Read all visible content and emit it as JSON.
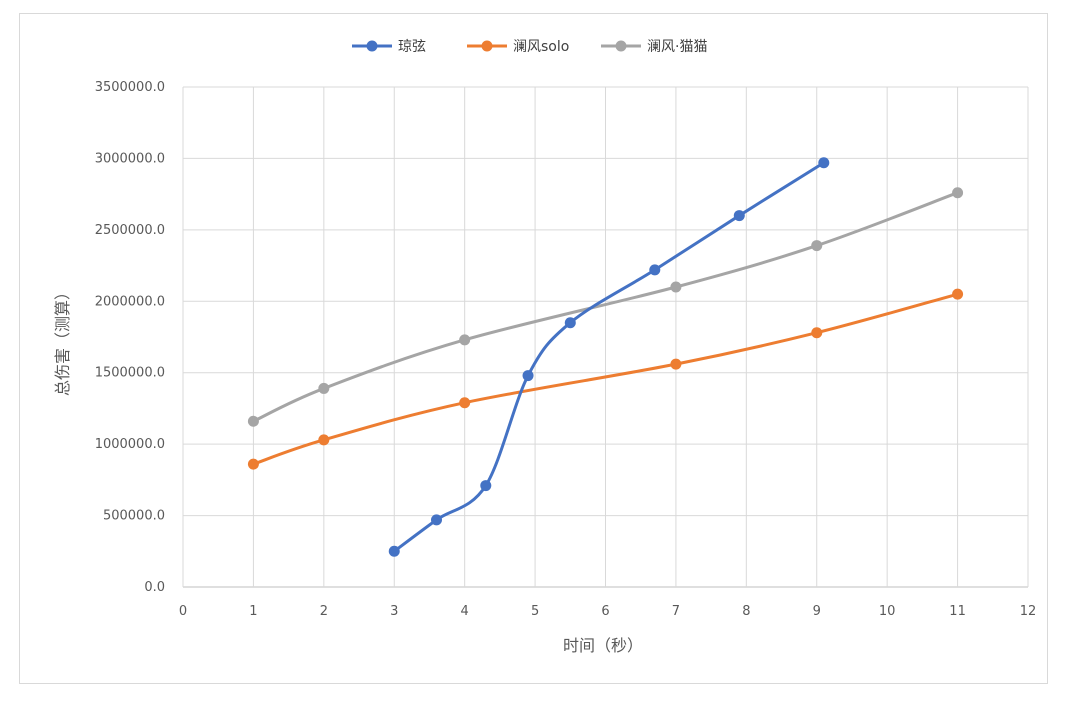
{
  "chart_data": {
    "type": "scatter",
    "xlabel": "时间（秒）",
    "ylabel": "总伤害（测算）",
    "xlim": [
      0,
      12
    ],
    "ylim": [
      0,
      3500000
    ],
    "x_ticks": [
      "0",
      "1",
      "2",
      "3",
      "4",
      "5",
      "6",
      "7",
      "8",
      "9",
      "10",
      "11",
      "12"
    ],
    "y_ticks": [
      "0.0",
      "500000.0",
      "1000000.0",
      "1500000.0",
      "2000000.0",
      "2500000.0",
      "3000000.0",
      "3500000.0"
    ],
    "grid": true,
    "legend_position": "top",
    "series": [
      {
        "name": "琼弦",
        "color": "#4472c4",
        "x": [
          3.0,
          3.6,
          4.3,
          4.9,
          5.5,
          6.7,
          7.9,
          9.1
        ],
        "y": [
          250000,
          470000,
          710000,
          1480000,
          1850000,
          2220000,
          2600000,
          2970000
        ]
      },
      {
        "name": "澜风solo",
        "color": "#ed7d31",
        "x": [
          1,
          2,
          4,
          7,
          9,
          11
        ],
        "y": [
          860000,
          1030000,
          1290000,
          1560000,
          1780000,
          2050000
        ]
      },
      {
        "name": "澜风·猫猫",
        "color": "#a5a5a5",
        "x": [
          1,
          2,
          4,
          7,
          9,
          11
        ],
        "y": [
          1160000,
          1390000,
          1730000,
          2100000,
          2390000,
          2760000
        ]
      }
    ]
  }
}
